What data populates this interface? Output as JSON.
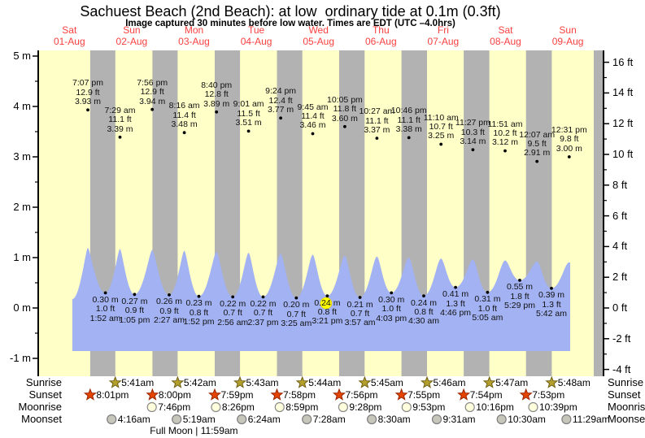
{
  "title": "Sachuest Beach (2nd Beach): at low  ordinary tide at 0.1m (0.3ft)",
  "subtitle": "Image captured 30 minutes before low water. Times are EDT (UTC –4.0hrs)",
  "days": [
    {
      "weekday": "Sat",
      "date": "01-Aug"
    },
    {
      "weekday": "Sun",
      "date": "02-Aug"
    },
    {
      "weekday": "Mon",
      "date": "03-Aug"
    },
    {
      "weekday": "Tue",
      "date": "04-Aug"
    },
    {
      "weekday": "Wed",
      "date": "05-Aug"
    },
    {
      "weekday": "Thu",
      "date": "06-Aug"
    },
    {
      "weekday": "Fri",
      "date": "07-Aug"
    },
    {
      "weekday": "Sat",
      "date": "08-Aug"
    },
    {
      "weekday": "Sun",
      "date": "09-Aug"
    }
  ],
  "y_axis_left": {
    "unit": "m",
    "tick_values": [
      5,
      4,
      3,
      2,
      1,
      0,
      -1
    ],
    "labels": [
      "5 m",
      "4 m",
      "3 m",
      "2 m",
      "1 m",
      "0 m",
      "-1 m"
    ]
  },
  "y_axis_right": {
    "unit": "ft",
    "tick_values": [
      16,
      14,
      12,
      10,
      8,
      6,
      4,
      2,
      0,
      -2,
      -4
    ],
    "labels": [
      "16 ft",
      "14 ft",
      "12 ft",
      "10 ft",
      "8 ft",
      "6 ft",
      "4 ft",
      "2 ft",
      "0 ft",
      "-2 ft",
      "-4 ft"
    ]
  },
  "chart_data": {
    "type": "area",
    "x_range": [
      "01-Aug",
      "09-Aug"
    ],
    "ylim_m": [
      -1.35,
      5.1
    ],
    "grid": false,
    "high_tides": [
      {
        "day": 0,
        "time": "7:07 pm",
        "hour": 19.117,
        "ft": "12.9",
        "m": "3.93"
      },
      {
        "day": 1,
        "time": "7:29 am",
        "hour": 7.483,
        "ft": "11.1",
        "m": "3.39"
      },
      {
        "day": 1,
        "time": "7:56 pm",
        "hour": 19.933,
        "ft": "12.9",
        "m": "3.94"
      },
      {
        "day": 2,
        "time": "8:16 am",
        "hour": 8.267,
        "ft": "11.4",
        "m": "3.48"
      },
      {
        "day": 2,
        "time": "8:40 pm",
        "hour": 20.667,
        "ft": "12.8",
        "m": "3.89"
      },
      {
        "day": 3,
        "time": "9:01 am",
        "hour": 9.017,
        "ft": "11.5",
        "m": "3.51"
      },
      {
        "day": 3,
        "time": "9:24 pm",
        "hour": 21.4,
        "ft": "12.4",
        "m": "3.77"
      },
      {
        "day": 4,
        "time": "9:45 am",
        "hour": 9.75,
        "ft": "11.4",
        "m": "3.46"
      },
      {
        "day": 4,
        "time": "10:05 pm",
        "hour": 22.083,
        "ft": "11.8",
        "m": "3.60"
      },
      {
        "day": 5,
        "time": "10:27 am",
        "hour": 10.45,
        "ft": "11.1",
        "m": "3.37"
      },
      {
        "day": 5,
        "time": "10:46 pm",
        "hour": 22.767,
        "ft": "11.1",
        "m": "3.38"
      },
      {
        "day": 6,
        "time": "11:10 am",
        "hour": 11.167,
        "ft": "10.7",
        "m": "3.25"
      },
      {
        "day": 6,
        "time": "11:27 pm",
        "hour": 23.45,
        "ft": "10.3",
        "m": "3.14"
      },
      {
        "day": 7,
        "time": "11:51 am",
        "hour": 11.85,
        "ft": "10.2",
        "m": "3.12"
      },
      {
        "day": 8,
        "time": "12:07 am",
        "hour": 0.117,
        "ft": "9.5",
        "m": "2.91"
      },
      {
        "day": 8,
        "time": "12:31 pm",
        "hour": 12.517,
        "ft": "9.8",
        "m": "3.00"
      }
    ],
    "low_tides": [
      {
        "day": 1,
        "time": "1:52 am",
        "hour": 1.867,
        "ft": "1.0",
        "m": "0.30"
      },
      {
        "day": 1,
        "time": "1:05 pm",
        "hour": 13.083,
        "ft": "0.9",
        "m": "0.27"
      },
      {
        "day": 2,
        "time": "2:27 am",
        "hour": 2.45,
        "ft": "0.9",
        "m": "0.26"
      },
      {
        "day": 2,
        "time": "1:52 pm",
        "hour": 13.867,
        "ft": "0.8",
        "m": "0.23"
      },
      {
        "day": 3,
        "time": "2:56 am",
        "hour": 2.933,
        "ft": "0.7",
        "m": "0.22"
      },
      {
        "day": 3,
        "time": "2:37 pm",
        "hour": 14.617,
        "ft": "0.7",
        "m": "0.22"
      },
      {
        "day": 4,
        "time": "3:25 am",
        "hour": 3.417,
        "ft": "0.7",
        "m": "0.20"
      },
      {
        "day": 4,
        "time": "3:21 pm",
        "hour": 15.35,
        "ft": "0.8",
        "m": "0.24",
        "highlight": true
      },
      {
        "day": 5,
        "time": "3:57 am",
        "hour": 3.95,
        "ft": "0.7",
        "m": "0.21"
      },
      {
        "day": 5,
        "time": "4:03 pm",
        "hour": 16.05,
        "ft": "1.0",
        "m": "0.30"
      },
      {
        "day": 6,
        "time": "4:30 am",
        "hour": 4.5,
        "ft": "0.8",
        "m": "0.24"
      },
      {
        "day": 6,
        "time": "4:46 pm",
        "hour": 16.767,
        "ft": "1.3",
        "m": "0.41"
      },
      {
        "day": 7,
        "time": "5:05 am",
        "hour": 5.083,
        "ft": "1.0",
        "m": "0.31"
      },
      {
        "day": 7,
        "time": "5:29 pm",
        "hour": 17.483,
        "ft": "1.8",
        "m": "0.55"
      },
      {
        "day": 8,
        "time": "5:42 am",
        "hour": 5.7,
        "ft": "1.3",
        "m": "0.39"
      }
    ]
  },
  "sun_moon": {
    "rows": [
      {
        "label": "Sunrise",
        "icon": "sunrise-star",
        "entries": [
          {
            "day": 1,
            "time": "5:41am",
            "hour": 5.683
          },
          {
            "day": 2,
            "time": "5:42am",
            "hour": 5.7
          },
          {
            "day": 3,
            "time": "5:43am",
            "hour": 5.717
          },
          {
            "day": 4,
            "time": "5:44am",
            "hour": 5.733
          },
          {
            "day": 5,
            "time": "5:45am",
            "hour": 5.75
          },
          {
            "day": 6,
            "time": "5:46am",
            "hour": 5.767
          },
          {
            "day": 7,
            "time": "5:47am",
            "hour": 5.783
          },
          {
            "day": 8,
            "time": "5:48am",
            "hour": 5.8
          }
        ]
      },
      {
        "label": "Sunset",
        "icon": "sunset-star",
        "entries": [
          {
            "day": 0,
            "time": "8:01pm",
            "hour": 20.017
          },
          {
            "day": 1,
            "time": "8:00pm",
            "hour": 20.0
          },
          {
            "day": 2,
            "time": "7:59pm",
            "hour": 19.983
          },
          {
            "day": 3,
            "time": "7:58pm",
            "hour": 19.967
          },
          {
            "day": 4,
            "time": "7:56pm",
            "hour": 19.933
          },
          {
            "day": 5,
            "time": "7:55pm",
            "hour": 19.917
          },
          {
            "day": 6,
            "time": "7:54pm",
            "hour": 19.9
          },
          {
            "day": 7,
            "time": "7:53pm",
            "hour": 19.883
          }
        ]
      },
      {
        "label": "Moonrise",
        "icon": "moonrise-circle",
        "entries": [
          {
            "day": 1,
            "time": "7:46pm",
            "hour": 19.767
          },
          {
            "day": 2,
            "time": "8:26pm",
            "hour": 20.433
          },
          {
            "day": 3,
            "time": "8:59pm",
            "hour": 20.983
          },
          {
            "day": 4,
            "time": "9:28pm",
            "hour": 21.467
          },
          {
            "day": 5,
            "time": "9:53pm",
            "hour": 21.883
          },
          {
            "day": 6,
            "time": "10:16pm",
            "hour": 22.267
          },
          {
            "day": 7,
            "time": "10:39pm",
            "hour": 22.65
          }
        ]
      },
      {
        "label": "Moonset",
        "icon": "moonset-circle",
        "entries": [
          {
            "day": 1,
            "time": "4:16am",
            "hour": 4.267
          },
          {
            "day": 2,
            "time": "5:19am",
            "hour": 5.317
          },
          {
            "day": 3,
            "time": "6:24am",
            "hour": 6.4
          },
          {
            "day": 4,
            "time": "7:28am",
            "hour": 7.467
          },
          {
            "day": 5,
            "time": "8:30am",
            "hour": 8.5
          },
          {
            "day": 6,
            "time": "9:31am",
            "hour": 9.517
          },
          {
            "day": 7,
            "time": "10:30am",
            "hour": 10.5
          },
          {
            "day": 8,
            "time": "11:29am",
            "hour": 11.483
          }
        ]
      }
    ],
    "footnote": "Full Moon | 11:59am",
    "full_moon_day": 2,
    "full_moon_hour": 11.983
  },
  "colors": {
    "day_band": "#ffffc8",
    "night_band": "#b2b2b2",
    "water": "#a2b2f2",
    "date_text": "#fb4040",
    "highlight": "#ffff00",
    "axis": "#000000"
  }
}
